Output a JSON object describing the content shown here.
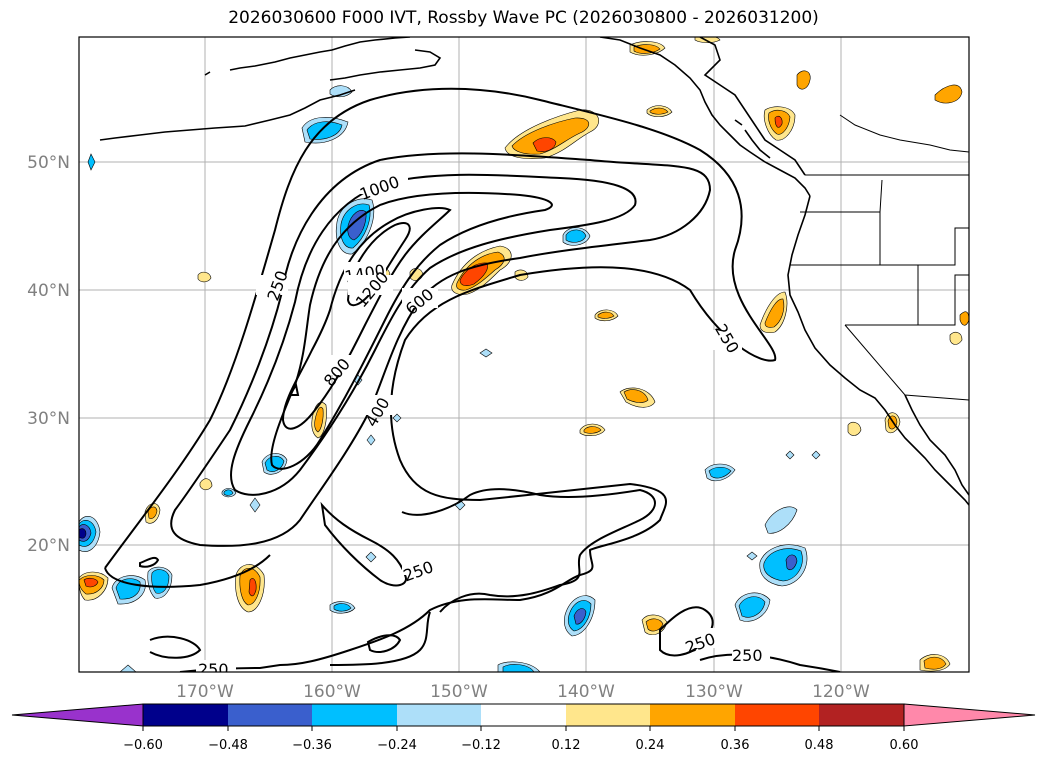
{
  "title": "2026030600 F000 IVT, Rossby Wave PC (2026030800 - 2026031200)",
  "map": {
    "lat_labels": [
      "50°N",
      "40°N",
      "30°N",
      "20°N"
    ],
    "lon_labels": [
      "170°W",
      "160°W",
      "150°W",
      "140°W",
      "130°W",
      "120°W"
    ],
    "contour_labels": [
      "1000",
      "1400",
      "1200",
      "600",
      "800",
      "400",
      "250",
      "250",
      "250",
      "250",
      "250",
      "250"
    ]
  },
  "colorbar": {
    "colors": [
      "#9932CC",
      "#00008B",
      "#3A5FCD",
      "#00BFFF",
      "#ADDFF9",
      "#FFFFFF",
      "#FFE68C",
      "#FFA500",
      "#FF4500",
      "#B22222",
      "#FF88AA"
    ],
    "ticks": [
      "−0.60",
      "−0.48",
      "−0.36",
      "−0.24",
      "−0.12",
      "0.12",
      "0.24",
      "0.36",
      "0.48",
      "0.60"
    ]
  }
}
